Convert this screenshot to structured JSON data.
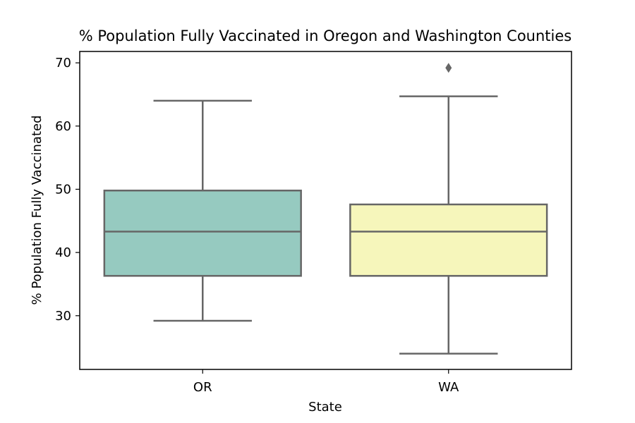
{
  "chart_data": {
    "type": "box",
    "title": "% Population Fully Vaccinated in Oregon and Washington Counties",
    "xlabel": "State",
    "ylabel": "% Population Fully Vaccinated",
    "categories": [
      "OR",
      "WA"
    ],
    "ylim": [
      21.5,
      71.8
    ],
    "yticks": [
      30,
      40,
      50,
      60,
      70
    ],
    "grid": false,
    "boxes": [
      {
        "category": "OR",
        "whisker_low": 29.2,
        "q1": 36.3,
        "median": 43.3,
        "q3": 49.8,
        "whisker_high": 64.0,
        "outliers": [],
        "color": "#96CAC0"
      },
      {
        "category": "WA",
        "whisker_low": 24.0,
        "q1": 36.3,
        "median": 43.3,
        "q3": 47.6,
        "whisker_high": 64.7,
        "outliers": [
          69.2
        ],
        "color": "#F6F6BB"
      }
    ],
    "line_color": "#666666",
    "outlier_color": "#666666"
  }
}
